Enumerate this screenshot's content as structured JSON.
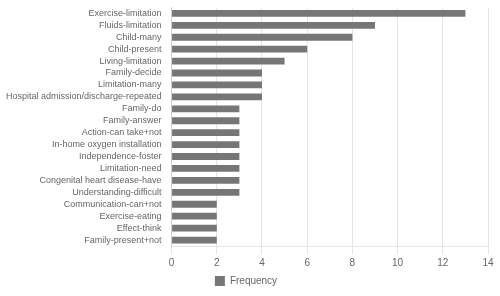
{
  "chart_data": {
    "type": "bar",
    "orientation": "horizontal",
    "categories": [
      "Family-present+not",
      "Effect-think",
      "Exercise-eating",
      "Communication-can+not",
      "Understanding-difficult",
      "Congenital heart disease-have",
      "Limitation-need",
      "Independence-foster",
      "In-home oxygen installation",
      "Action-can take+not",
      "Family-answer",
      "Family-do",
      "Hospital admission/discharge-repeated",
      "Limitation-many",
      "Family-decide",
      "Living-limitation",
      "Child-present",
      "Child-many",
      "Fluids-limitation",
      "Exercise-limitation"
    ],
    "series": [
      {
        "name": "Frequency",
        "color": "#767676",
        "values": [
          2,
          2,
          2,
          2,
          3,
          3,
          3,
          3,
          3,
          3,
          3,
          3,
          4,
          4,
          4,
          5,
          6,
          8,
          9,
          13
        ]
      }
    ],
    "xlim": [
      0,
      14
    ],
    "xticks": [
      0,
      2,
      4,
      6,
      8,
      10,
      12,
      14
    ],
    "grid": true,
    "legend": "bottom"
  }
}
